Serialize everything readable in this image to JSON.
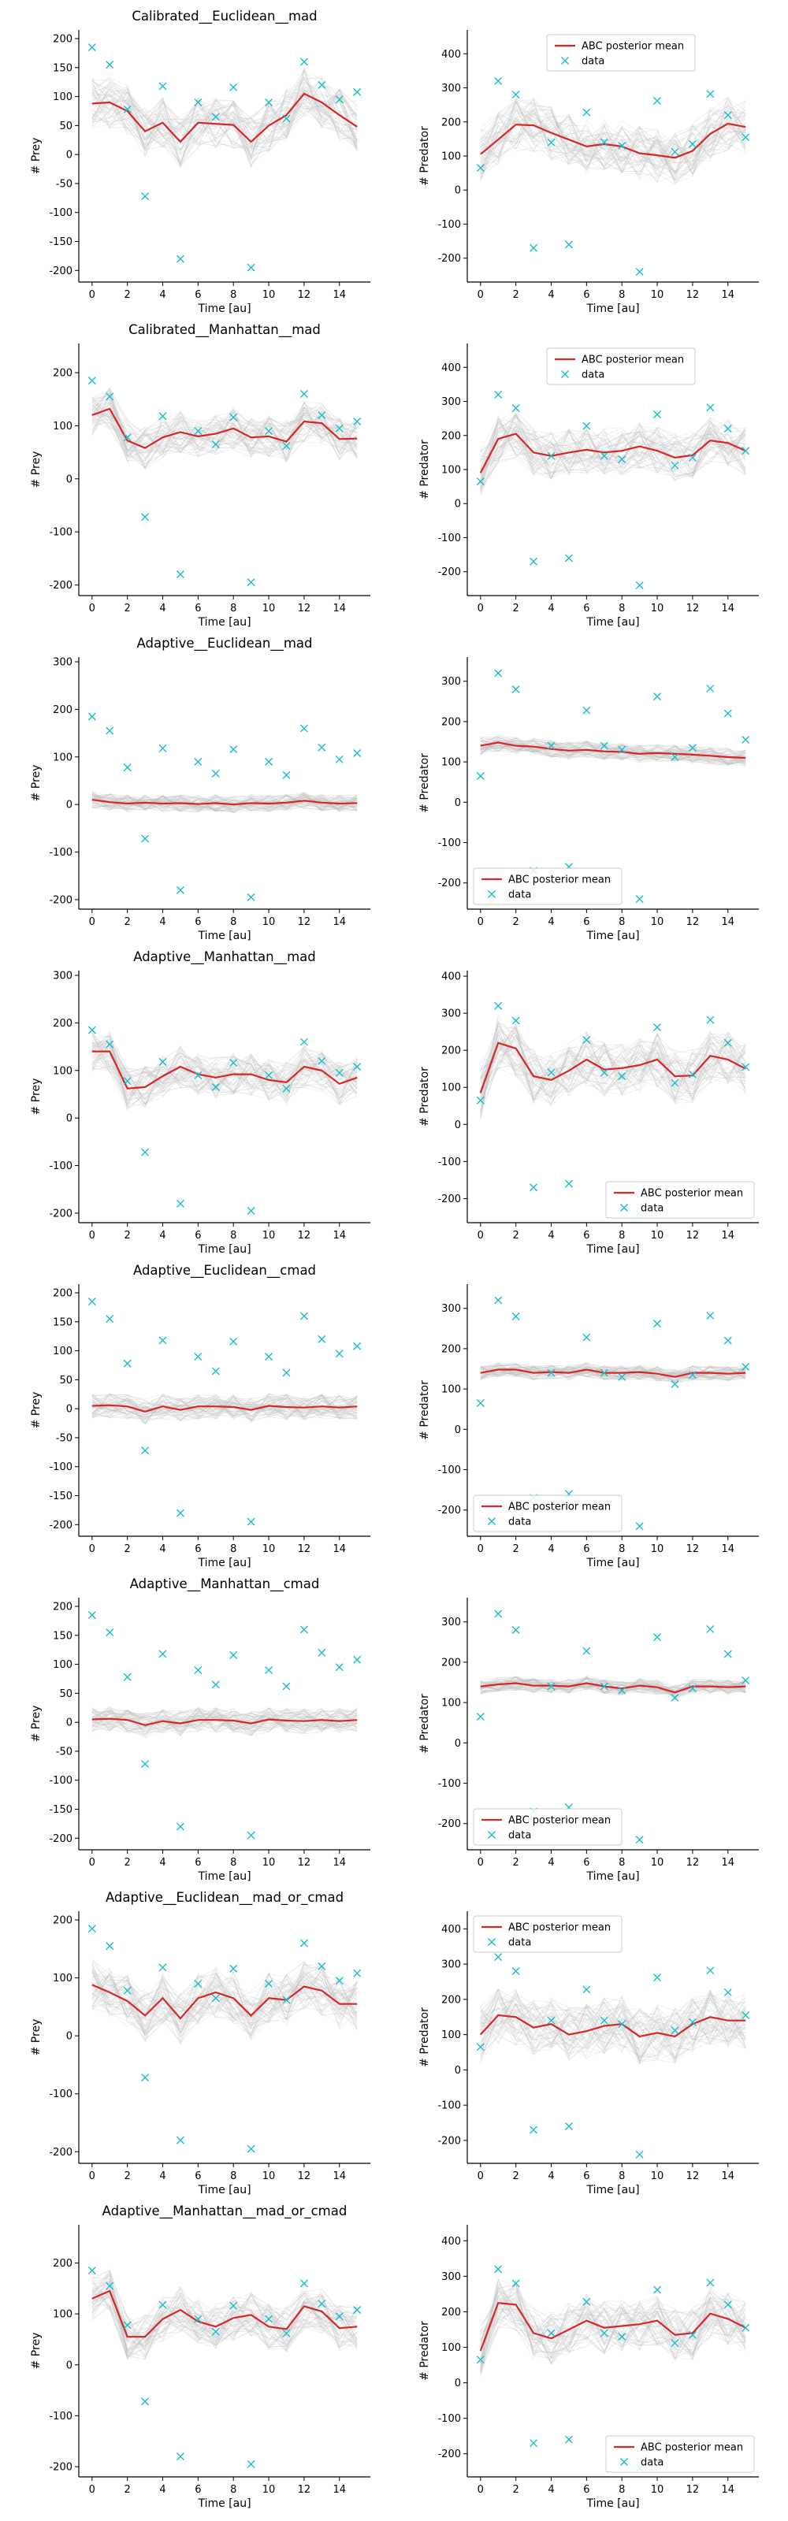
{
  "colors": {
    "mean_line": "#d62728",
    "data_marker": "#17becf",
    "samples": "#bbbbbb",
    "axis": "#000000"
  },
  "chart_data": [
    {
      "type": "line",
      "title": "Calibrated__Euclidean__mad",
      "xlabel": "Time [au]",
      "ylabel": "# Prey",
      "xlim": [
        -0.75,
        15.75
      ],
      "ylim": [
        -220,
        215
      ],
      "xticks": [
        0,
        2,
        4,
        6,
        8,
        10,
        12,
        14
      ],
      "yticks": [
        -200,
        -150,
        -100,
        -50,
        0,
        50,
        100,
        150,
        200
      ],
      "series": [
        {
          "name": "",
          "values": [
            88,
            90,
            75,
            40,
            55,
            22,
            55,
            53,
            51,
            22,
            50,
            68,
            105,
            90,
            68,
            48
          ]
        }
      ],
      "data_points": [
        185,
        155,
        78,
        -72,
        118,
        -180,
        90,
        65,
        116,
        -195,
        90,
        62,
        160,
        120,
        95,
        108
      ],
      "samples_band": 45,
      "legend": null
    },
    {
      "type": "line",
      "title": "",
      "xlabel": "Time [au]",
      "ylabel": "# Predator",
      "xlim": [
        -0.75,
        15.75
      ],
      "ylim": [
        -270,
        470
      ],
      "xticks": [
        0,
        2,
        4,
        6,
        8,
        10,
        12,
        14
      ],
      "yticks": [
        -200,
        -100,
        0,
        100,
        200,
        300,
        400
      ],
      "series": [
        {
          "name": "ABC posterior mean",
          "values": [
            105,
            148,
            192,
            190,
            168,
            148,
            128,
            135,
            128,
            108,
            102,
            95,
            115,
            165,
            195,
            185
          ]
        }
      ],
      "data_points": [
        65,
        320,
        280,
        -170,
        140,
        -160,
        228,
        140,
        130,
        -240,
        262,
        112,
        135,
        282,
        220,
        155
      ],
      "samples_band": 80,
      "legend": {
        "position": "top-center",
        "entries": [
          "ABC posterior mean",
          "data"
        ]
      }
    },
    {
      "type": "line",
      "title": "Calibrated__Manhattan__mad",
      "xlabel": "Time [au]",
      "ylabel": "# Prey",
      "xlim": [
        -0.75,
        15.75
      ],
      "ylim": [
        -220,
        255
      ],
      "xticks": [
        0,
        2,
        4,
        6,
        8,
        10,
        12,
        14
      ],
      "yticks": [
        -200,
        -100,
        0,
        100,
        200
      ],
      "series": [
        {
          "name": "",
          "values": [
            120,
            132,
            72,
            58,
            78,
            88,
            80,
            85,
            95,
            78,
            80,
            70,
            108,
            105,
            75,
            76
          ]
        }
      ],
      "data_points": [
        185,
        155,
        78,
        -72,
        118,
        -180,
        90,
        65,
        116,
        -195,
        90,
        62,
        160,
        120,
        95,
        108
      ],
      "samples_band": 40,
      "legend": null
    },
    {
      "type": "line",
      "title": "",
      "xlabel": "Time [au]",
      "ylabel": "# Predator",
      "xlim": [
        -0.75,
        15.75
      ],
      "ylim": [
        -270,
        470
      ],
      "xticks": [
        0,
        2,
        4,
        6,
        8,
        10,
        12,
        14
      ],
      "yticks": [
        -200,
        -100,
        0,
        100,
        200,
        300,
        400
      ],
      "series": [
        {
          "name": "ABC posterior mean",
          "values": [
            90,
            190,
            205,
            150,
            140,
            150,
            158,
            150,
            155,
            168,
            155,
            135,
            142,
            185,
            178,
            155
          ]
        }
      ],
      "data_points": [
        65,
        320,
        280,
        -170,
        140,
        -160,
        228,
        140,
        130,
        -240,
        262,
        112,
        135,
        282,
        220,
        155
      ],
      "samples_band": 70,
      "legend": {
        "position": "top-center",
        "entries": [
          "ABC posterior mean",
          "data"
        ]
      }
    },
    {
      "type": "line",
      "title": "Adaptive__Euclidean__mad",
      "xlabel": "Time [au]",
      "ylabel": "# Prey",
      "xlim": [
        -0.75,
        15.75
      ],
      "ylim": [
        -220,
        310
      ],
      "xticks": [
        0,
        2,
        4,
        6,
        8,
        10,
        12,
        14
      ],
      "yticks": [
        -200,
        -100,
        0,
        100,
        200,
        300
      ],
      "series": [
        {
          "name": "",
          "values": [
            10,
            5,
            2,
            4,
            2,
            3,
            1,
            3,
            0,
            3,
            2,
            4,
            8,
            4,
            2,
            3
          ]
        }
      ],
      "data_points": [
        185,
        155,
        78,
        -72,
        118,
        -180,
        90,
        65,
        116,
        -195,
        90,
        62,
        160,
        120,
        95,
        108
      ],
      "samples_band": 18,
      "legend": null
    },
    {
      "type": "line",
      "title": "",
      "xlabel": "Time [au]",
      "ylabel": "# Predator",
      "xlim": [
        -0.75,
        15.75
      ],
      "ylim": [
        -265,
        360
      ],
      "xticks": [
        0,
        2,
        4,
        6,
        8,
        10,
        12,
        14
      ],
      "yticks": [
        -200,
        -100,
        0,
        100,
        200,
        300
      ],
      "series": [
        {
          "name": "ABC posterior mean",
          "values": [
            140,
            148,
            140,
            138,
            132,
            128,
            130,
            126,
            125,
            120,
            122,
            120,
            118,
            115,
            112,
            110
          ]
        }
      ],
      "data_points": [
        65,
        320,
        280,
        -170,
        140,
        -160,
        228,
        140,
        130,
        -240,
        262,
        112,
        135,
        282,
        220,
        155
      ],
      "samples_band": 22,
      "legend": {
        "position": "bottom-left",
        "entries": [
          "ABC posterior mean",
          "data"
        ]
      }
    },
    {
      "type": "line",
      "title": "Adaptive__Manhattan__mad",
      "xlabel": "Time [au]",
      "ylabel": "# Prey",
      "xlim": [
        -0.75,
        15.75
      ],
      "ylim": [
        -220,
        310
      ],
      "xticks": [
        0,
        2,
        4,
        6,
        8,
        10,
        12,
        14
      ],
      "yticks": [
        -200,
        -100,
        0,
        100,
        200,
        300
      ],
      "series": [
        {
          "name": "",
          "values": [
            140,
            140,
            62,
            65,
            88,
            108,
            92,
            85,
            92,
            92,
            80,
            75,
            108,
            100,
            72,
            85
          ]
        }
      ],
      "data_points": [
        185,
        155,
        78,
        -72,
        118,
        -180,
        90,
        65,
        116,
        -195,
        90,
        62,
        160,
        120,
        95,
        108
      ],
      "samples_band": 45,
      "legend": null
    },
    {
      "type": "line",
      "title": "",
      "xlabel": "Time [au]",
      "ylabel": "# Predator",
      "xlim": [
        -0.75,
        15.75
      ],
      "ylim": [
        -265,
        415
      ],
      "xticks": [
        0,
        2,
        4,
        6,
        8,
        10,
        12,
        14
      ],
      "yticks": [
        -200,
        -100,
        0,
        100,
        200,
        300,
        400
      ],
      "series": [
        {
          "name": "ABC posterior mean",
          "values": [
            85,
            220,
            205,
            130,
            120,
            145,
            175,
            148,
            152,
            160,
            175,
            130,
            132,
            185,
            175,
            150
          ]
        }
      ],
      "data_points": [
        65,
        320,
        280,
        -170,
        140,
        -160,
        228,
        140,
        130,
        -240,
        262,
        112,
        135,
        282,
        220,
        155
      ],
      "samples_band": 75,
      "legend": {
        "position": "bottom-right",
        "entries": [
          "ABC posterior mean",
          "data"
        ]
      }
    },
    {
      "type": "line",
      "title": "Adaptive__Euclidean__cmad",
      "xlabel": "Time [au]",
      "ylabel": "# Prey",
      "xlim": [
        -0.75,
        15.75
      ],
      "ylim": [
        -220,
        215
      ],
      "xticks": [
        0,
        2,
        4,
        6,
        8,
        10,
        12,
        14
      ],
      "yticks": [
        -200,
        -150,
        -100,
        -50,
        0,
        50,
        100,
        150,
        200
      ],
      "series": [
        {
          "name": "",
          "values": [
            5,
            6,
            4,
            -5,
            4,
            -2,
            4,
            4,
            3,
            -2,
            5,
            3,
            2,
            4,
            2,
            4
          ]
        }
      ],
      "data_points": [
        185,
        155,
        78,
        -72,
        118,
        -180,
        90,
        65,
        116,
        -195,
        90,
        62,
        160,
        120,
        95,
        108
      ],
      "samples_band": 22,
      "legend": null
    },
    {
      "type": "line",
      "title": "",
      "xlabel": "Time [au]",
      "ylabel": "# Predator",
      "xlim": [
        -0.75,
        15.75
      ],
      "ylim": [
        -265,
        360
      ],
      "xticks": [
        0,
        2,
        4,
        6,
        8,
        10,
        12,
        14
      ],
      "yticks": [
        -200,
        -100,
        0,
        100,
        200,
        300
      ],
      "series": [
        {
          "name": "ABC posterior mean",
          "values": [
            140,
            148,
            148,
            140,
            142,
            140,
            148,
            140,
            140,
            142,
            138,
            130,
            140,
            140,
            138,
            140
          ]
        }
      ],
      "data_points": [
        65,
        320,
        280,
        -170,
        140,
        -160,
        228,
        140,
        130,
        -240,
        262,
        112,
        135,
        282,
        220,
        155
      ],
      "samples_band": 18,
      "legend": {
        "position": "bottom-left",
        "entries": [
          "ABC posterior mean",
          "data"
        ]
      }
    },
    {
      "type": "line",
      "title": "Adaptive__Manhattan__cmad",
      "xlabel": "Time [au]",
      "ylabel": "# Prey",
      "xlim": [
        -0.75,
        15.75
      ],
      "ylim": [
        -220,
        215
      ],
      "xticks": [
        0,
        2,
        4,
        6,
        8,
        10,
        12,
        14
      ],
      "yticks": [
        -200,
        -150,
        -100,
        -50,
        0,
        50,
        100,
        150,
        200
      ],
      "series": [
        {
          "name": "",
          "values": [
            5,
            6,
            4,
            -5,
            2,
            -2,
            4,
            4,
            3,
            -2,
            5,
            3,
            2,
            4,
            2,
            4
          ]
        }
      ],
      "data_points": [
        185,
        155,
        78,
        -72,
        118,
        -180,
        90,
        65,
        116,
        -195,
        90,
        62,
        160,
        120,
        95,
        108
      ],
      "samples_band": 22,
      "legend": null
    },
    {
      "type": "line",
      "title": "",
      "xlabel": "Time [au]",
      "ylabel": "# Predator",
      "xlim": [
        -0.75,
        15.75
      ],
      "ylim": [
        -265,
        360
      ],
      "xticks": [
        0,
        2,
        4,
        6,
        8,
        10,
        12,
        14
      ],
      "yticks": [
        -200,
        -100,
        0,
        100,
        200,
        300
      ],
      "series": [
        {
          "name": "ABC posterior mean",
          "values": [
            140,
            145,
            148,
            142,
            142,
            140,
            148,
            140,
            135,
            142,
            138,
            125,
            140,
            140,
            138,
            140
          ]
        }
      ],
      "data_points": [
        65,
        320,
        280,
        -170,
        140,
        -160,
        228,
        140,
        130,
        -240,
        262,
        112,
        135,
        282,
        220,
        155
      ],
      "samples_band": 18,
      "legend": {
        "position": "bottom-left",
        "entries": [
          "ABC posterior mean",
          "data"
        ]
      }
    },
    {
      "type": "line",
      "title": "Adaptive__Euclidean__mad_or_cmad",
      "xlabel": "Time [au]",
      "ylabel": "# Prey",
      "xlim": [
        -0.75,
        15.75
      ],
      "ylim": [
        -220,
        215
      ],
      "xticks": [
        0,
        2,
        4,
        6,
        8,
        10,
        12,
        14
      ],
      "yticks": [
        -200,
        -100,
        0,
        100,
        200
      ],
      "series": [
        {
          "name": "",
          "values": [
            88,
            75,
            60,
            35,
            65,
            30,
            65,
            75,
            65,
            35,
            65,
            62,
            85,
            78,
            55,
            55
          ]
        }
      ],
      "data_points": [
        185,
        155,
        78,
        -72,
        118,
        -180,
        90,
        65,
        116,
        -195,
        90,
        62,
        160,
        120,
        95,
        108
      ],
      "samples_band": 45,
      "legend": null
    },
    {
      "type": "line",
      "title": "",
      "xlabel": "Time [au]",
      "ylabel": "# Predator",
      "xlim": [
        -0.75,
        15.75
      ],
      "ylim": [
        -265,
        450
      ],
      "xticks": [
        0,
        2,
        4,
        6,
        8,
        10,
        12,
        14
      ],
      "yticks": [
        -200,
        -100,
        0,
        100,
        200,
        300,
        400
      ],
      "series": [
        {
          "name": "ABC posterior mean",
          "values": [
            100,
            155,
            150,
            120,
            130,
            100,
            110,
            125,
            130,
            95,
            105,
            95,
            130,
            150,
            140,
            140
          ]
        }
      ],
      "data_points": [
        65,
        320,
        280,
        -170,
        140,
        -160,
        228,
        140,
        130,
        -240,
        262,
        112,
        135,
        282,
        220,
        155
      ],
      "samples_band": 80,
      "legend": {
        "position": "top-left",
        "entries": [
          "ABC posterior mean",
          "data"
        ]
      }
    },
    {
      "type": "line",
      "title": "Adaptive__Manhattan__mad_or_cmad",
      "xlabel": "Time [au]",
      "ylabel": "# Prey",
      "xlim": [
        -0.75,
        15.75
      ],
      "ylim": [
        -220,
        275
      ],
      "xticks": [
        0,
        2,
        4,
        6,
        8,
        10,
        12,
        14
      ],
      "yticks": [
        -200,
        -100,
        0,
        100,
        200
      ],
      "series": [
        {
          "name": "",
          "values": [
            130,
            145,
            55,
            55,
            90,
            108,
            85,
            75,
            92,
            98,
            75,
            70,
            115,
            105,
            72,
            75
          ]
        }
      ],
      "data_points": [
        185,
        155,
        78,
        -72,
        118,
        -180,
        90,
        65,
        116,
        -195,
        90,
        62,
        160,
        120,
        95,
        108
      ],
      "samples_band": 45,
      "legend": null
    },
    {
      "type": "line",
      "title": "",
      "xlabel": "Time [au]",
      "ylabel": "# Predator",
      "xlim": [
        -0.75,
        15.75
      ],
      "ylim": [
        -265,
        445
      ],
      "xticks": [
        0,
        2,
        4,
        6,
        8,
        10,
        12,
        14
      ],
      "yticks": [
        -200,
        -100,
        0,
        100,
        200,
        300,
        400
      ],
      "series": [
        {
          "name": "ABC posterior mean",
          "values": [
            90,
            225,
            220,
            140,
            125,
            150,
            175,
            155,
            160,
            165,
            175,
            135,
            140,
            195,
            180,
            155
          ]
        }
      ],
      "data_points": [
        65,
        320,
        280,
        -170,
        140,
        -160,
        228,
        140,
        130,
        -240,
        262,
        112,
        135,
        282,
        220,
        155
      ],
      "samples_band": 75,
      "legend": {
        "position": "bottom-right",
        "entries": [
          "ABC posterior mean",
          "data"
        ]
      }
    }
  ]
}
